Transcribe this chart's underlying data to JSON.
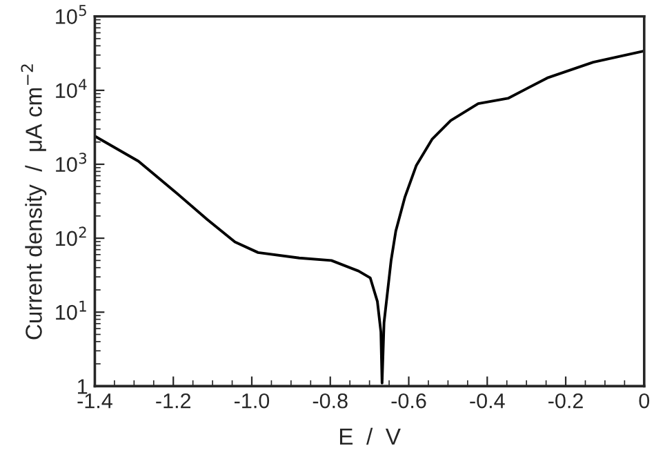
{
  "chart_data": {
    "type": "line",
    "xlabel": "E  /  V",
    "ylabel": "Current density  /  μA cm$^{−2}$",
    "log": "y",
    "grid": false,
    "marker": "none",
    "line_style": "solid",
    "xlim": [
      -1.4,
      0
    ],
    "xticks": [
      {
        "value": -1.4,
        "label": "-1.4"
      },
      {
        "value": -1.2,
        "label": "-1.2"
      },
      {
        "value": -1.0,
        "label": "-1.0"
      },
      {
        "value": -0.8,
        "label": "-0.8"
      },
      {
        "value": -0.6,
        "label": "-0.6"
      },
      {
        "value": -0.4,
        "label": "-0.4"
      },
      {
        "value": -0.2,
        "label": "-0.2"
      },
      {
        "value": 0,
        "label": "0"
      }
    ],
    "ylim": [
      1,
      100000
    ],
    "yticks": [
      {
        "value": 1,
        "label": "1"
      },
      {
        "value": 10,
        "label": "10$^{1}$"
      },
      {
        "value": 100,
        "label": "10$^{2}$"
      },
      {
        "value": 1000,
        "label": "10$^{3}$"
      },
      {
        "value": 10000,
        "label": "10$^{4}$"
      },
      {
        "value": 100000,
        "label": "10$^{5}$"
      }
    ],
    "series": [
      {
        "color": "#000000",
        "x": [
          -1.4,
          -1.289,
          -1.2,
          -1.113,
          -1.043,
          -0.984,
          -0.879,
          -0.797,
          -0.728,
          -0.698,
          -0.68,
          -0.671,
          -0.668,
          -0.663,
          -0.645,
          -0.633,
          -0.61,
          -0.581,
          -0.54,
          -0.493,
          -0.423,
          -0.347,
          -0.247,
          -0.13,
          0
        ],
        "values": [
          2400,
          1100,
          445,
          178,
          89,
          64,
          54,
          50,
          36,
          29,
          14,
          5.4,
          1.1,
          7.2,
          50,
          125,
          357,
          955,
          2200,
          3900,
          6600,
          7800,
          14700,
          24000,
          34000
        ]
      }
    ]
  }
}
